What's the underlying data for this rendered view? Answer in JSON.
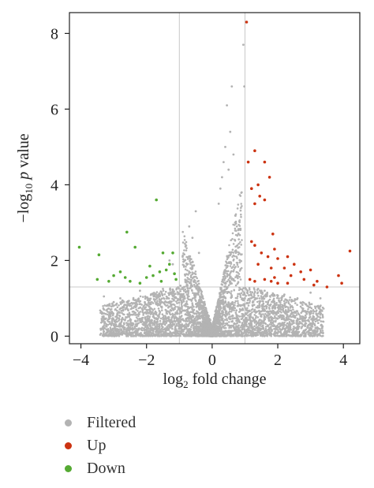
{
  "chart_data": {
    "type": "scatter",
    "title": "",
    "xlabel": {
      "prefix": "log",
      "sub": "2",
      "suffix": " fold change"
    },
    "ylabel": {
      "prefix": "−log",
      "sub": "10",
      "italic": " p",
      "suffix": " value"
    },
    "xlim": [
      -4.35,
      4.5
    ],
    "ylim": [
      -0.2,
      8.55
    ],
    "xticks": [
      -4,
      -2,
      0,
      2,
      4
    ],
    "xtick_labels": [
      "−4",
      "−2",
      "0",
      "2",
      "4"
    ],
    "yticks": [
      0,
      2,
      4,
      6,
      8
    ],
    "ytick_labels": [
      "0",
      "2",
      "4",
      "6",
      "8"
    ],
    "reference_lines": {
      "x": [
        -1,
        1
      ],
      "y": 1.3
    },
    "grid": false,
    "legend_position": "bottom-left",
    "colors": {
      "Filtered": "#b3b3b3",
      "Up": "#cc3311",
      "Down": "#55aa33"
    },
    "series": [
      {
        "name": "Filtered",
        "description_values": "dense cloud of non-significant genes forming a V shape near x=0",
        "points": [
          [
            0.45,
            6.1
          ],
          [
            0.55,
            5.4
          ],
          [
            0.6,
            6.6
          ],
          [
            0.4,
            5.0
          ],
          [
            0.35,
            4.6
          ],
          [
            0.5,
            4.4
          ],
          [
            0.3,
            4.2
          ],
          [
            0.25,
            3.9
          ],
          [
            0.2,
            3.5
          ],
          [
            0.65,
            4.8
          ],
          [
            0.7,
            3.0
          ],
          [
            0.8,
            2.8
          ],
          [
            -0.5,
            3.3
          ],
          [
            -0.6,
            2.6
          ],
          [
            -0.7,
            2.9
          ],
          [
            -0.4,
            2.2
          ],
          [
            -0.8,
            2.4
          ],
          [
            -0.9,
            2.1
          ],
          [
            -1.3,
            2.0
          ],
          [
            -1.6,
            1.7
          ],
          [
            -1.2,
            1.9
          ],
          [
            0.95,
            7.7
          ],
          [
            0.98,
            6.6
          ],
          [
            0.9,
            3.8
          ],
          [
            -2.2,
            1.2
          ],
          [
            -2.8,
            1.0
          ],
          [
            -3.0,
            0.9
          ],
          [
            2.2,
            1.1
          ],
          [
            2.6,
            1.0
          ],
          [
            3.0,
            1.15
          ],
          [
            1.6,
            1.2
          ],
          [
            1.4,
            1.25
          ],
          [
            -1.5,
            1.25
          ],
          [
            -1.8,
            1.1
          ],
          [
            3.3,
            1.0
          ],
          [
            -3.3,
            1.05
          ]
        ]
      },
      {
        "name": "Up",
        "points": [
          [
            1.05,
            8.3
          ],
          [
            1.3,
            4.9
          ],
          [
            1.1,
            4.6
          ],
          [
            1.6,
            4.6
          ],
          [
            1.75,
            4.2
          ],
          [
            1.4,
            4.0
          ],
          [
            1.2,
            3.9
          ],
          [
            1.45,
            3.7
          ],
          [
            1.6,
            3.6
          ],
          [
            1.3,
            3.5
          ],
          [
            1.85,
            2.7
          ],
          [
            1.2,
            2.5
          ],
          [
            1.3,
            2.4
          ],
          [
            1.5,
            2.2
          ],
          [
            1.7,
            2.1
          ],
          [
            1.9,
            2.3
          ],
          [
            2.0,
            2.05
          ],
          [
            2.3,
            2.1
          ],
          [
            1.4,
            1.9
          ],
          [
            1.8,
            1.8
          ],
          [
            2.2,
            1.8
          ],
          [
            2.5,
            1.9
          ],
          [
            2.7,
            1.7
          ],
          [
            3.0,
            1.75
          ],
          [
            1.9,
            1.55
          ],
          [
            2.4,
            1.6
          ],
          [
            1.6,
            1.5
          ],
          [
            1.3,
            1.45
          ],
          [
            2.0,
            1.4
          ],
          [
            2.8,
            1.5
          ],
          [
            3.2,
            1.45
          ],
          [
            1.8,
            1.45
          ],
          [
            1.15,
            1.5
          ],
          [
            2.3,
            1.4
          ],
          [
            3.1,
            1.35
          ],
          [
            3.5,
            1.3
          ],
          [
            3.85,
            1.6
          ],
          [
            3.95,
            1.4
          ],
          [
            4.2,
            2.25
          ]
        ]
      },
      {
        "name": "Down",
        "points": [
          [
            -4.05,
            2.35
          ],
          [
            -3.45,
            2.15
          ],
          [
            -2.6,
            2.75
          ],
          [
            -2.35,
            2.35
          ],
          [
            -1.7,
            3.6
          ],
          [
            -1.5,
            2.2
          ],
          [
            -1.2,
            2.2
          ],
          [
            -3.5,
            1.5
          ],
          [
            -3.0,
            1.6
          ],
          [
            -2.8,
            1.7
          ],
          [
            -2.5,
            1.45
          ],
          [
            -2.2,
            1.4
          ],
          [
            -2.0,
            1.55
          ],
          [
            -1.8,
            1.6
          ],
          [
            -1.6,
            1.7
          ],
          [
            -1.4,
            1.75
          ],
          [
            -1.15,
            1.65
          ],
          [
            -1.3,
            1.9
          ],
          [
            -1.9,
            1.85
          ],
          [
            -1.55,
            1.45
          ],
          [
            -1.1,
            1.5
          ],
          [
            -2.65,
            1.55
          ],
          [
            -3.15,
            1.45
          ]
        ]
      }
    ]
  },
  "legend": [
    {
      "label": "Filtered",
      "color": "#b3b3b3"
    },
    {
      "label": "Up",
      "color": "#cc3311"
    },
    {
      "label": "Down",
      "color": "#55aa33"
    }
  ]
}
